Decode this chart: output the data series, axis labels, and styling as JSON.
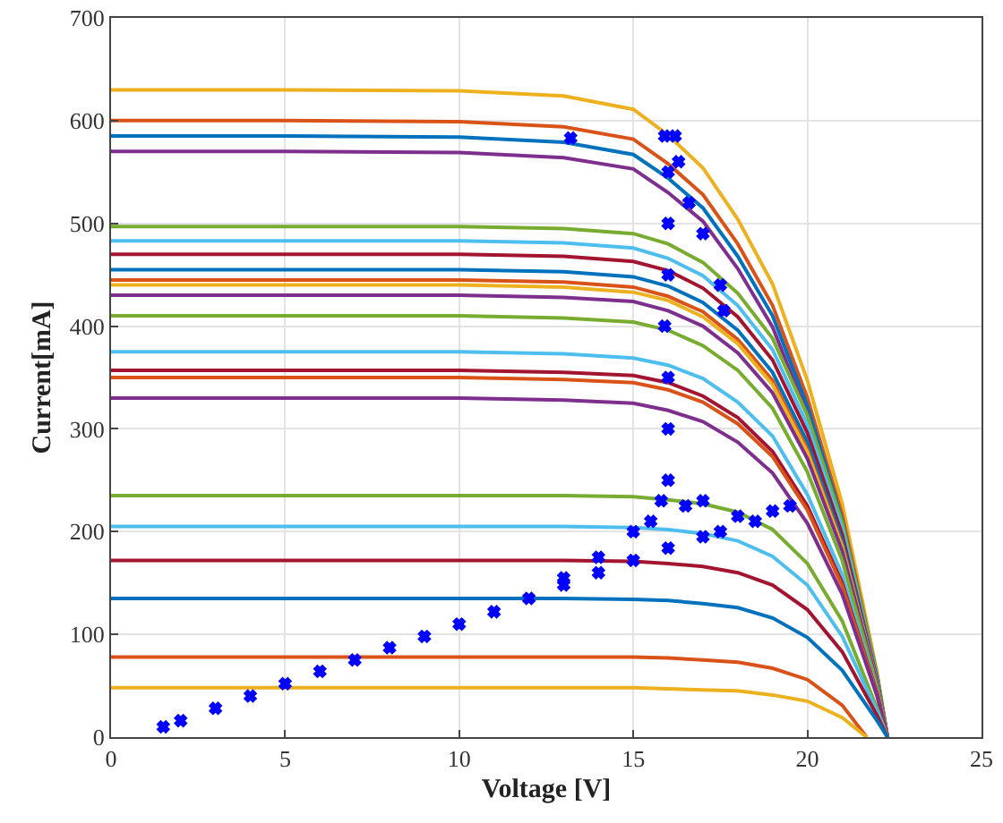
{
  "chart_data": {
    "type": "line",
    "xlabel": "Voltage [V]",
    "ylabel": "Current[mA]",
    "xlim": [
      0,
      25
    ],
    "ylim": [
      0,
      700
    ],
    "xticks": [
      0,
      5,
      10,
      15,
      20,
      25
    ],
    "yticks": [
      0,
      100,
      200,
      300,
      400,
      500,
      600,
      700
    ],
    "grid": true,
    "x": [
      0,
      5,
      10,
      13,
      15,
      16,
      17,
      18,
      19,
      20,
      21,
      22,
      22.3
    ],
    "series": [
      {
        "color": "#edb120",
        "values": [
          630,
          630,
          629,
          624,
          611,
          586,
          554,
          504,
          441,
          347,
          227,
          63,
          0
        ]
      },
      {
        "color": "#d95319",
        "values": [
          600,
          600,
          599,
          594,
          582,
          558,
          528,
          480,
          420,
          330,
          216,
          60,
          0
        ]
      },
      {
        "color": "#0072bd",
        "values": [
          585,
          585,
          584,
          579,
          567,
          544,
          515,
          468,
          410,
          322,
          211,
          59,
          0
        ]
      },
      {
        "color": "#7e2f8e",
        "values": [
          570,
          570,
          569,
          564,
          553,
          530,
          502,
          456,
          399,
          314,
          205,
          57,
          0
        ]
      },
      {
        "color": "#77ac30",
        "values": [
          497,
          497,
          497,
          495,
          490,
          480,
          462,
          432,
          388,
          313,
          209,
          60,
          0
        ]
      },
      {
        "color": "#4dbeee",
        "values": [
          483,
          483,
          483,
          481,
          476,
          466,
          449,
          420,
          377,
          304,
          203,
          58,
          0
        ]
      },
      {
        "color": "#a2142f",
        "values": [
          470,
          470,
          470,
          468,
          463,
          454,
          437,
          409,
          367,
          296,
          197,
          56,
          0
        ]
      },
      {
        "color": "#0072bd",
        "values": [
          455,
          455,
          455,
          453,
          448,
          439,
          423,
          396,
          355,
          287,
          191,
          55,
          0
        ]
      },
      {
        "color": "#d95319",
        "values": [
          445,
          445,
          445,
          443,
          438,
          429,
          414,
          387,
          347,
          280,
          187,
          53,
          0
        ]
      },
      {
        "color": "#edb120",
        "values": [
          440,
          440,
          440,
          438,
          433,
          425,
          409,
          383,
          343,
          277,
          185,
          53,
          0
        ]
      },
      {
        "color": "#7e2f8e",
        "values": [
          430,
          430,
          430,
          428,
          424,
          415,
          400,
          374,
          335,
          271,
          181,
          52,
          0
        ]
      },
      {
        "color": "#77ac30",
        "values": [
          410,
          410,
          410,
          408,
          404,
          396,
          381,
          357,
          320,
          258,
          172,
          49,
          0
        ]
      },
      {
        "color": "#4dbeee",
        "values": [
          375,
          375,
          375,
          373,
          369,
          362,
          349,
          326,
          293,
          236,
          158,
          45,
          0
        ]
      },
      {
        "color": "#a2142f",
        "values": [
          357,
          357,
          357,
          355,
          352,
          345,
          332,
          311,
          278,
          225,
          150,
          43,
          0
        ]
      },
      {
        "color": "#d95319",
        "values": [
          350,
          350,
          350,
          348,
          345,
          338,
          326,
          305,
          273,
          221,
          147,
          42,
          0
        ]
      },
      {
        "color": "#7e2f8e",
        "values": [
          330,
          330,
          330,
          328,
          325,
          318,
          307,
          287,
          257,
          208,
          139,
          40,
          0
        ]
      },
      {
        "color": "#77ac30",
        "values": [
          235,
          235,
          235,
          235,
          234,
          231,
          227,
          219,
          202,
          169,
          113,
          28,
          0
        ]
      },
      {
        "color": "#4dbeee",
        "values": [
          205,
          205,
          205,
          205,
          204,
          202,
          198,
          191,
          176,
          148,
          98,
          25,
          0
        ]
      },
      {
        "color": "#a2142f",
        "values": [
          172,
          172,
          172,
          172,
          171,
          169,
          166,
          160,
          148,
          124,
          83,
          21,
          0
        ]
      },
      {
        "color": "#0072bd",
        "values": [
          135,
          135,
          135,
          135,
          134,
          133,
          130,
          126,
          116,
          97,
          65,
          16,
          0
        ]
      },
      {
        "color": "#d95319",
        "x": [
          0,
          5,
          10,
          13,
          15,
          16,
          17,
          18,
          19,
          20,
          21,
          21.7
        ],
        "values": [
          78,
          78,
          78,
          78,
          78,
          77,
          75,
          73,
          67,
          56,
          31,
          0
        ]
      },
      {
        "color": "#edb120",
        "x": [
          0,
          5,
          10,
          13,
          15,
          16,
          17,
          18,
          19,
          20,
          21,
          21.7
        ],
        "values": [
          48,
          48,
          48,
          48,
          48,
          47,
          46,
          45,
          41,
          35,
          19,
          0
        ]
      },
      {
        "type": "scatter",
        "marker": "cross",
        "color": "#0000ff",
        "x": [
          1.5,
          2,
          3,
          4,
          5,
          6,
          7,
          8,
          9,
          10,
          11,
          12,
          13,
          14,
          15,
          16,
          17,
          17.5,
          13,
          14,
          15,
          15.5,
          15.8,
          16,
          16,
          16,
          15.9,
          16,
          16,
          16,
          15.9,
          16.2,
          16.3,
          16.6,
          17,
          17.5,
          17.6,
          16.5,
          17,
          18,
          18.5,
          19,
          19.5,
          13.2
        ],
        "values": [
          10,
          16,
          28,
          40,
          52,
          64,
          75,
          87,
          98,
          110,
          122,
          135,
          148,
          160,
          172,
          184,
          195,
          200,
          155,
          175,
          200,
          210,
          230,
          250,
          300,
          350,
          400,
          450,
          500,
          550,
          585,
          585,
          560,
          520,
          490,
          440,
          415,
          225,
          230,
          215,
          210,
          220,
          225,
          583
        ]
      }
    ]
  }
}
